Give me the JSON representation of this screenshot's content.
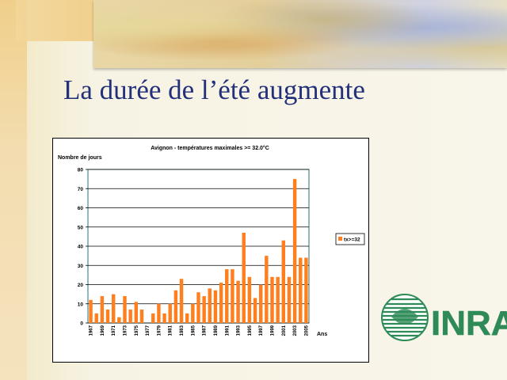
{
  "slide": {
    "title": "La durée de l’été augmente"
  },
  "logo": {
    "text": "INRA",
    "color": "#2e8b57"
  },
  "chart_data": {
    "type": "bar",
    "title": "Avignon - températures maximales >= 32.0°C",
    "ylabel": "Nombre de jours",
    "xlabel": "Ans",
    "ylim": [
      0,
      80
    ],
    "yticks": [
      0,
      10,
      20,
      30,
      40,
      50,
      60,
      70,
      80
    ],
    "grid": true,
    "legend_position": "right",
    "bar_color": "#ff7f1e",
    "categories": [
      "1967",
      "1968",
      "1969",
      "1970",
      "1971",
      "1972",
      "1973",
      "1974",
      "1975",
      "1976",
      "1977",
      "1978",
      "1979",
      "1980",
      "1981",
      "1982",
      "1983",
      "1984",
      "1985",
      "1986",
      "1987",
      "1988",
      "1989",
      "1990",
      "1991",
      "1992",
      "1993",
      "1994",
      "1995",
      "1996",
      "1997",
      "1998",
      "1999",
      "2000",
      "2001",
      "2002",
      "2003",
      "2004",
      "2005"
    ],
    "xtick_labels": [
      "1967",
      "",
      "1969",
      "",
      "1971",
      "",
      "1973",
      "",
      "1975",
      "",
      "1977",
      "",
      "1979",
      "",
      "1981",
      "",
      "1983",
      "",
      "1985",
      "",
      "1987",
      "",
      "1989",
      "",
      "1991",
      "",
      "1993",
      "",
      "1995",
      "",
      "1997",
      "",
      "1999",
      "",
      "2001",
      "",
      "2003",
      "",
      "2005"
    ],
    "series": [
      {
        "name": "tx>=32",
        "values": [
          12,
          5,
          14,
          7,
          15,
          3,
          14,
          7,
          11,
          7,
          0,
          5,
          10,
          5,
          10,
          17,
          23,
          5,
          10,
          16,
          14,
          18,
          17,
          21,
          28,
          28,
          22,
          47,
          24,
          13,
          20,
          35,
          24,
          24,
          43,
          24,
          75,
          34,
          34
        ]
      }
    ]
  }
}
